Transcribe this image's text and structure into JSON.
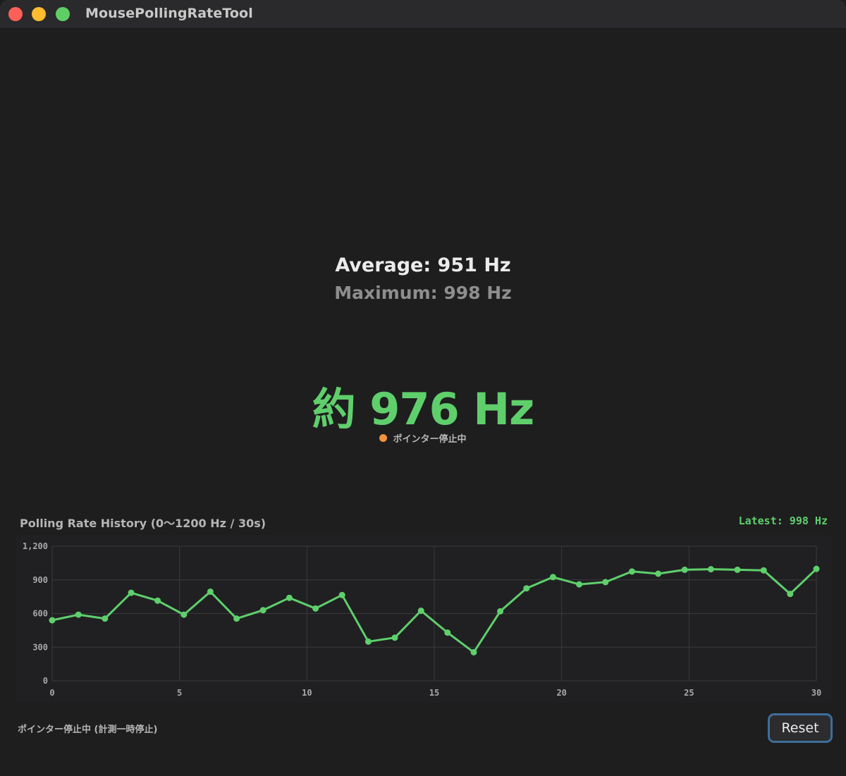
{
  "window": {
    "title": "MousePollingRateTool"
  },
  "stats": {
    "average": "Average: 951 Hz",
    "maximum": "Maximum: 998 Hz",
    "current": "約 976 Hz",
    "status": "ポインター停止中"
  },
  "colors": {
    "accent_green": "#5fcf6c",
    "status_dot": "#f3923c",
    "background": "#1e1e1f",
    "button_focus": "#3e6d9c"
  },
  "history": {
    "title": "Polling Rate History (0〜1200 Hz / 30s)",
    "latest": "Latest: 998 Hz"
  },
  "footer": {
    "status": "ポインター停止中 (計測一時停止)",
    "reset_label": "Reset"
  },
  "chart_data": {
    "type": "line",
    "xlim": [
      0,
      30
    ],
    "ylim": [
      0,
      1200
    ],
    "x_ticks": [
      0,
      5,
      10,
      15,
      20,
      25,
      30
    ],
    "y_ticks": [
      0,
      300,
      600,
      900,
      1200
    ],
    "y_tick_labels": [
      "0",
      "300",
      "600",
      "900",
      "1,200"
    ],
    "grid": true,
    "series": [
      {
        "color": "#5fcf6c",
        "x": [
          0,
          1.03,
          2.07,
          3.1,
          4.14,
          5.17,
          6.21,
          7.24,
          8.28,
          9.31,
          10.34,
          11.38,
          12.41,
          13.45,
          14.48,
          15.52,
          16.55,
          17.59,
          18.62,
          19.66,
          20.69,
          21.72,
          22.76,
          23.79,
          24.83,
          25.86,
          26.9,
          27.93,
          28.97,
          30
        ],
        "y": [
          540,
          590,
          555,
          785,
          715,
          590,
          795,
          555,
          630,
          740,
          645,
          765,
          350,
          385,
          625,
          430,
          255,
          620,
          825,
          925,
          860,
          880,
          975,
          955,
          990,
          995,
          990,
          985,
          775,
          998
        ]
      }
    ]
  }
}
